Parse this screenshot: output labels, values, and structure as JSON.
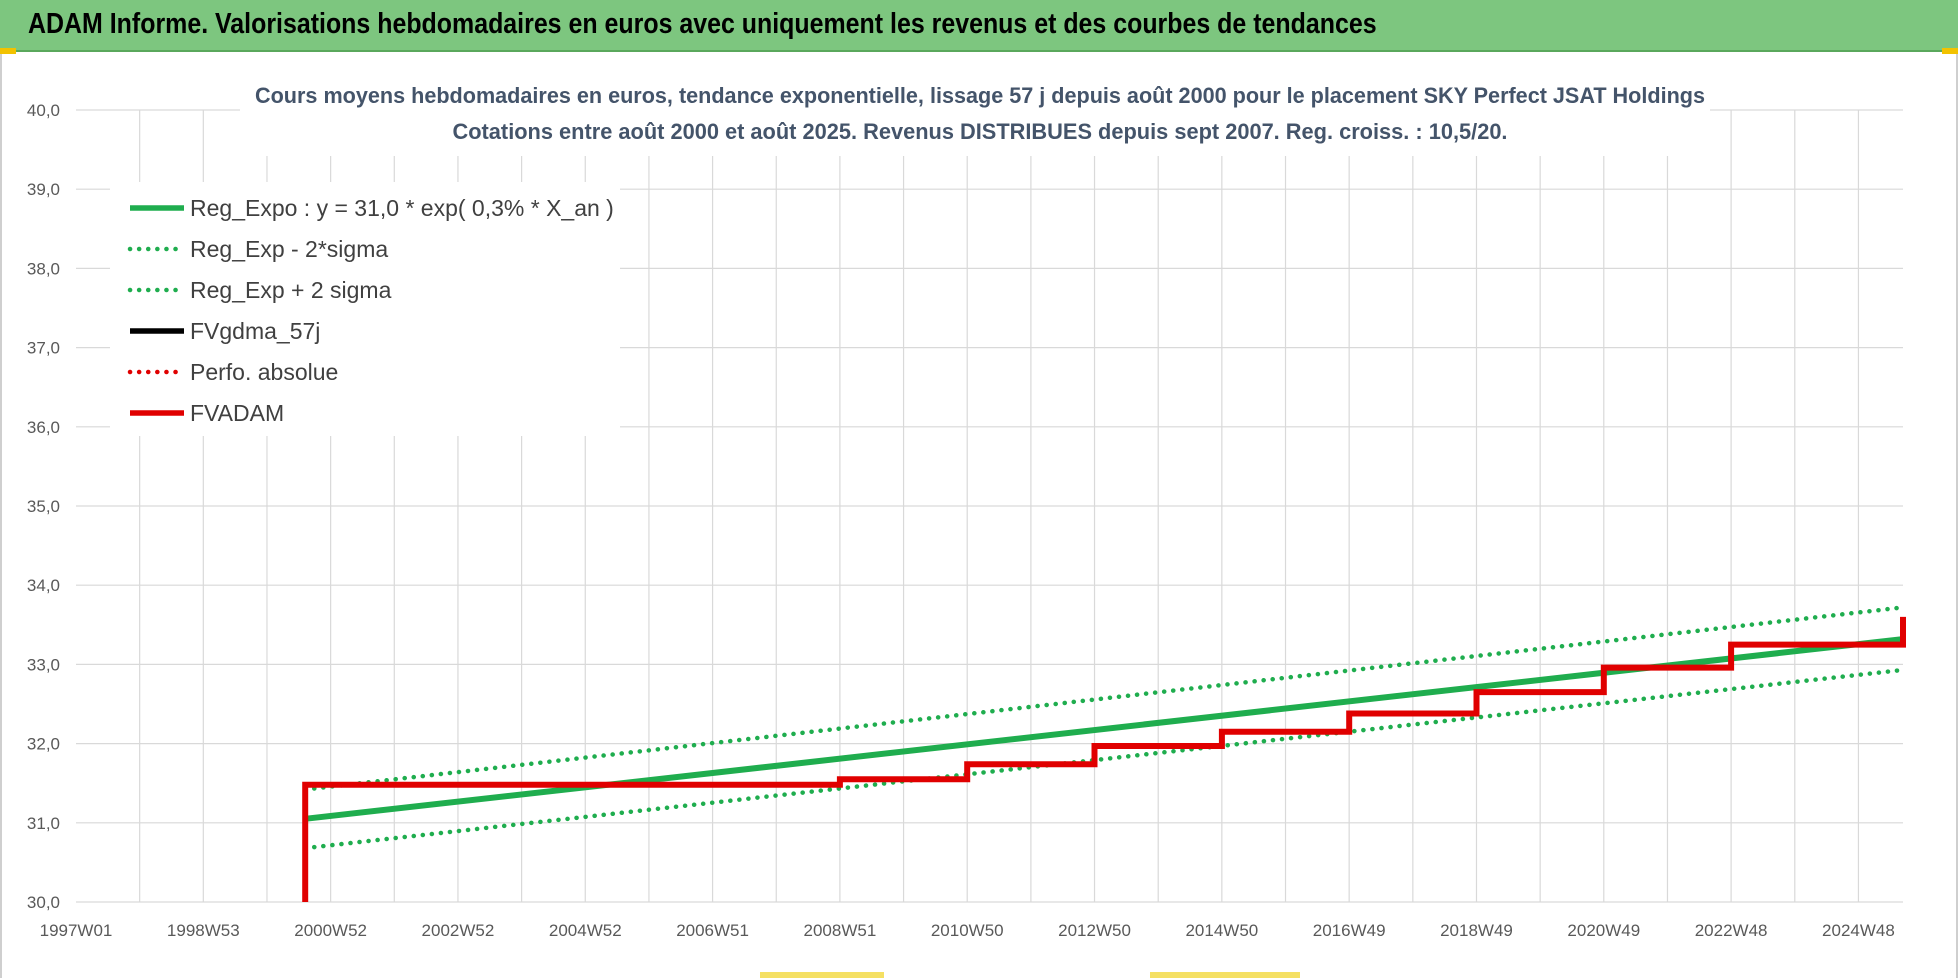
{
  "banner": {
    "title": "ADAM Informe. Valorisations hebdomadaires en euros avec uniquement les revenus et des courbes de tendances",
    "background": "#7dc67f"
  },
  "chart_data": {
    "type": "line",
    "title_lines": [
      "Cours moyens hebdomadaires en euros, tendance exponentielle, lissage 57 j depuis août 2000 pour le placement SKY Perfect JSAT Holdings",
      "Cotations entre août 2000 et août 2025. Revenus DISTRIBUES depuis sept 2007. Reg. croiss. : 10,5/20."
    ],
    "x_range": [
      1997.0,
      2025.7
    ],
    "x_ticks": [
      {
        "label": "1997W01",
        "x": 1997.0
      },
      {
        "label": "1998W53",
        "x": 1999.0
      },
      {
        "label": "2000W52",
        "x": 2001.0
      },
      {
        "label": "2002W52",
        "x": 2003.0
      },
      {
        "label": "2004W52",
        "x": 2005.0
      },
      {
        "label": "2006W51",
        "x": 2007.0
      },
      {
        "label": "2008W51",
        "x": 2009.0
      },
      {
        "label": "2010W50",
        "x": 2011.0
      },
      {
        "label": "2012W50",
        "x": 2013.0
      },
      {
        "label": "2014W50",
        "x": 2015.0
      },
      {
        "label": "2016W49",
        "x": 2017.0
      },
      {
        "label": "2018W49",
        "x": 2019.0
      },
      {
        "label": "2020W49",
        "x": 2021.0
      },
      {
        "label": "2022W48",
        "x": 2023.0
      },
      {
        "label": "2024W48",
        "x": 2025.0
      }
    ],
    "y_range": [
      30.0,
      40.0
    ],
    "y_ticks": [
      "30,0",
      "31,0",
      "32,0",
      "33,0",
      "34,0",
      "35,0",
      "36,0",
      "37,0",
      "38,0",
      "39,0",
      "40,0"
    ],
    "grid": true,
    "legend_position": "top-left",
    "series": [
      {
        "name": "Reg_Expo : y = 31,0 * exp( 0,3% *  X_an )",
        "color": "#1fad4e",
        "style": "solid",
        "points": [
          [
            2000.6,
            31.05
          ],
          [
            2025.7,
            33.32
          ]
        ]
      },
      {
        "name": "Reg_Exp - 2*sigma",
        "color": "#1fad4e",
        "style": "dotted",
        "points": [
          [
            2000.6,
            30.68
          ],
          [
            2025.7,
            32.93
          ]
        ]
      },
      {
        "name": "Reg_Exp + 2 sigma",
        "color": "#1fad4e",
        "style": "dotted",
        "points": [
          [
            2000.6,
            31.42
          ],
          [
            2025.7,
            33.72
          ]
        ]
      },
      {
        "name": "FVgdma_57j",
        "color": "#000000",
        "style": "solid",
        "points": []
      },
      {
        "name": "Perfo. absolue",
        "color": "#e00000",
        "style": "dotted",
        "points": []
      },
      {
        "name": "FVADAM",
        "color": "#e00000",
        "style": "solid",
        "points": [
          [
            2000.6,
            30.0
          ],
          [
            2000.6,
            31.48
          ],
          [
            2005.0,
            31.48
          ],
          [
            2007.7,
            31.48
          ],
          [
            2009.0,
            31.55
          ],
          [
            2011.0,
            31.74
          ],
          [
            2013.0,
            31.97
          ],
          [
            2015.0,
            32.15
          ],
          [
            2017.0,
            32.38
          ],
          [
            2019.0,
            32.65
          ],
          [
            2021.0,
            32.96
          ],
          [
            2023.0,
            33.25
          ],
          [
            2025.7,
            33.6
          ]
        ]
      }
    ]
  }
}
